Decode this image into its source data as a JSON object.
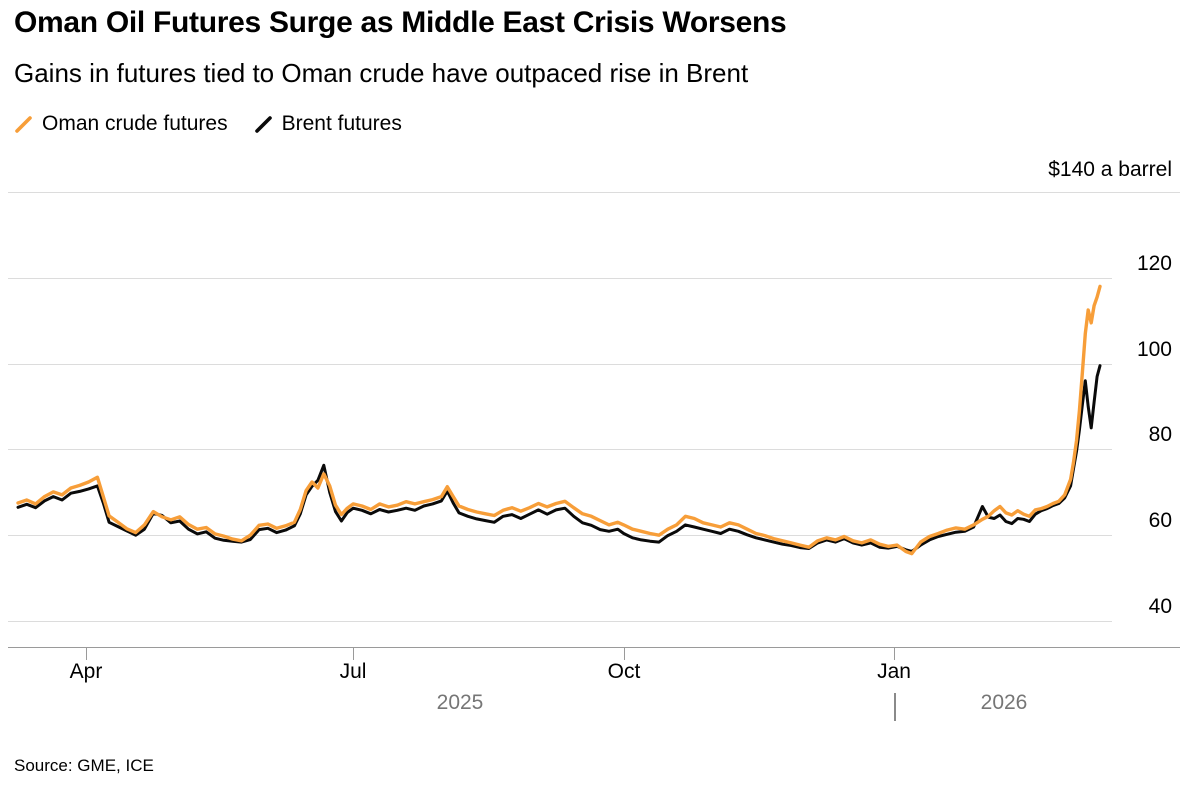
{
  "header": {
    "title": "Oman Oil Futures Surge as Middle East Crisis Worsens",
    "subtitle": "Gains in futures tied to Oman crude have outpaced rise in Brent"
  },
  "legend": [
    {
      "label": "Oman crude futures",
      "color": "#F79E39"
    },
    {
      "label": "Brent futures",
      "color": "#0A0A0A"
    }
  ],
  "axis": {
    "top_right_label": "$140 a barrel",
    "year_labels": [
      "2025",
      "2026"
    ]
  },
  "source": "Source: GME, ICE",
  "chart_data": {
    "type": "line",
    "title": "Oman Oil Futures Surge as Middle East Crisis Worsens",
    "subtitle": "Gains in futures tied to Oman crude have outpaced rise in Brent",
    "ylabel": "$ a barrel",
    "ylim": [
      40,
      140
    ],
    "y_gridlines": [
      140,
      120,
      100,
      80,
      60,
      40
    ],
    "y_tick_labels": [
      120,
      100,
      80,
      60,
      40
    ],
    "xlim": [
      0,
      368
    ],
    "x_axis": {
      "tick_positions": [
        23,
        114,
        206,
        298
      ],
      "tick_labels": [
        "Apr",
        "Jul",
        "Oct",
        "Jan"
      ],
      "year_labels": [
        "2025",
        "2026"
      ]
    },
    "grid": true,
    "legend_position": "top-left",
    "series_names": [
      "Oman crude futures",
      "Brent futures"
    ],
    "rows_format": [
      "day_index",
      "oman_usd_per_barrel",
      "brent_usd_per_barrel"
    ],
    "rows": [
      [
        0,
        67.5,
        66.5
      ],
      [
        3,
        68.2,
        67.2
      ],
      [
        6,
        67.3,
        66.4
      ],
      [
        9,
        69,
        68
      ],
      [
        12,
        70.1,
        69
      ],
      [
        15,
        69.4,
        68.2
      ],
      [
        18,
        71,
        69.8
      ],
      [
        21,
        71.6,
        70.2
      ],
      [
        24,
        72.4,
        70.8
      ],
      [
        27,
        73.5,
        71.5
      ],
      [
        29,
        69,
        67.5
      ],
      [
        31,
        64.5,
        63
      ],
      [
        34,
        63,
        62
      ],
      [
        37,
        61.5,
        61
      ],
      [
        40,
        60.6,
        60
      ],
      [
        43,
        62.4,
        61.4
      ],
      [
        46,
        65.5,
        65.1
      ],
      [
        49,
        64.3,
        64.6
      ],
      [
        52,
        63.6,
        62.9
      ],
      [
        55,
        64.3,
        63.3
      ],
      [
        58,
        62.5,
        61.4
      ],
      [
        61,
        61.4,
        60.3
      ],
      [
        64,
        61.8,
        60.8
      ],
      [
        67,
        60.3,
        59.3
      ],
      [
        70,
        59.8,
        58.8
      ],
      [
        73,
        59.1,
        58.6
      ],
      [
        76,
        58.7,
        58.4
      ],
      [
        79,
        60,
        59
      ],
      [
        82,
        62.3,
        61.3
      ],
      [
        85,
        62.6,
        61.6
      ],
      [
        88,
        61.6,
        60.6
      ],
      [
        91,
        62.2,
        61.2
      ],
      [
        94,
        63,
        62.2
      ],
      [
        96,
        66,
        65
      ],
      [
        98,
        70.4,
        69.4
      ],
      [
        100,
        72.4,
        71.4
      ],
      [
        102,
        71,
        72.8
      ],
      [
        104,
        74.3,
        76.3
      ],
      [
        106,
        71.5,
        70
      ],
      [
        108,
        67,
        65.5
      ],
      [
        110,
        64.8,
        63.3
      ],
      [
        112,
        66.3,
        65.3
      ],
      [
        114,
        67.3,
        66.3
      ],
      [
        117,
        66.8,
        65.8
      ],
      [
        120,
        66,
        65
      ],
      [
        123,
        67.3,
        66
      ],
      [
        126,
        66.6,
        65.4
      ],
      [
        129,
        67,
        65.8
      ],
      [
        132,
        67.8,
        66.3
      ],
      [
        135,
        67.3,
        65.8
      ],
      [
        138,
        67.8,
        66.8
      ],
      [
        141,
        68.3,
        67.3
      ],
      [
        144,
        69,
        68
      ],
      [
        146,
        71.3,
        70.3
      ],
      [
        148,
        69,
        67.5
      ],
      [
        150,
        66.8,
        65.2
      ],
      [
        153,
        66,
        64.4
      ],
      [
        156,
        65.4,
        63.8
      ],
      [
        159,
        65,
        63.4
      ],
      [
        162,
        64.6,
        63
      ],
      [
        165,
        65.8,
        64.4
      ],
      [
        168,
        66.4,
        64.8
      ],
      [
        171,
        65.6,
        63.9
      ],
      [
        174,
        66.4,
        64.9
      ],
      [
        177,
        67.4,
        65.9
      ],
      [
        180,
        66.6,
        64.9
      ],
      [
        183,
        67.4,
        65.9
      ],
      [
        186,
        67.9,
        66.3
      ],
      [
        189,
        66.4,
        64.4
      ],
      [
        192,
        65,
        62.9
      ],
      [
        195,
        64.4,
        62.3
      ],
      [
        198,
        63.4,
        61.3
      ],
      [
        201,
        62.4,
        60.9
      ],
      [
        204,
        63,
        61.4
      ],
      [
        206,
        62.4,
        60.4
      ],
      [
        209,
        61.4,
        59.4
      ],
      [
        212,
        60.9,
        58.9
      ],
      [
        215,
        60.4,
        58.6
      ],
      [
        218,
        60,
        58.4
      ],
      [
        221,
        61.4,
        59.9
      ],
      [
        224,
        62.4,
        60.9
      ],
      [
        227,
        64.4,
        62.4
      ],
      [
        230,
        63.9,
        61.9
      ],
      [
        233,
        62.9,
        61.4
      ],
      [
        236,
        62.4,
        60.9
      ],
      [
        239,
        61.9,
        60.4
      ],
      [
        242,
        62.9,
        61.4
      ],
      [
        245,
        62.4,
        60.9
      ],
      [
        248,
        61.4,
        60.1
      ],
      [
        251,
        60.4,
        59.4
      ],
      [
        254,
        59.9,
        58.9
      ],
      [
        257,
        59.2,
        58.4
      ],
      [
        260,
        58.7,
        57.9
      ],
      [
        263,
        58.2,
        57.6
      ],
      [
        266,
        57.7,
        57.1
      ],
      [
        269,
        57.2,
        56.9
      ],
      [
        272,
        58.7,
        58.2
      ],
      [
        275,
        59.4,
        58.9
      ],
      [
        278,
        58.9,
        58.4
      ],
      [
        281,
        59.7,
        59.2
      ],
      [
        284,
        58.7,
        58.2
      ],
      [
        287,
        58.2,
        57.7
      ],
      [
        290,
        58.9,
        58.2
      ],
      [
        293,
        57.9,
        57.2
      ],
      [
        296,
        57.4,
        57
      ],
      [
        299,
        57.7,
        57.4
      ],
      [
        302,
        56.2,
        56.6
      ],
      [
        304,
        55.7,
        56.2
      ],
      [
        307,
        58.4,
        57.7
      ],
      [
        310,
        59.7,
        58.9
      ],
      [
        313,
        60.4,
        59.7
      ],
      [
        316,
        61.2,
        60.2
      ],
      [
        319,
        61.7,
        60.7
      ],
      [
        322,
        61.4,
        60.9
      ],
      [
        325,
        62.4,
        61.9
      ],
      [
        328,
        63.7,
        66.7
      ],
      [
        330,
        64.4,
        64.2
      ],
      [
        332,
        65.7,
        63.9
      ],
      [
        334,
        66.7,
        64.7
      ],
      [
        336,
        65.2,
        63.2
      ],
      [
        338,
        64.7,
        62.7
      ],
      [
        340,
        65.7,
        63.9
      ],
      [
        342,
        64.9,
        63.7
      ],
      [
        344,
        64.4,
        63.2
      ],
      [
        346,
        65.9,
        64.9
      ],
      [
        348,
        66.2,
        65.7
      ],
      [
        350,
        66.7,
        66.2
      ],
      [
        352,
        67.4,
        66.9
      ],
      [
        354,
        67.9,
        67.4
      ],
      [
        356,
        69.4,
        68.7
      ],
      [
        358,
        73,
        71.5
      ],
      [
        359,
        77,
        75.5
      ],
      [
        360,
        82,
        79.5
      ],
      [
        361,
        89,
        84.5
      ],
      [
        362,
        98,
        90.5
      ],
      [
        363,
        107,
        96
      ],
      [
        364,
        112.5,
        90
      ],
      [
        365,
        109.5,
        85
      ],
      [
        366,
        113.5,
        91
      ],
      [
        367,
        115.5,
        97
      ],
      [
        368,
        118,
        99.5
      ]
    ]
  }
}
